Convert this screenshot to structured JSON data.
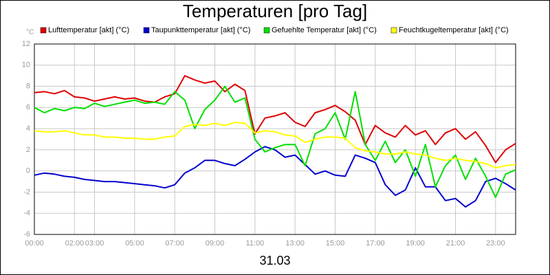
{
  "chart_data": {
    "type": "line",
    "title": "Temperaturen [pro Tag]",
    "x_label": "31.03",
    "y_label": "°C",
    "x": [
      0,
      0.5,
      1,
      1.5,
      2,
      2.5,
      3,
      3.5,
      4,
      4.5,
      5,
      5.5,
      6,
      6.5,
      7,
      7.5,
      8,
      8.5,
      9,
      9.5,
      10,
      10.5,
      11,
      11.5,
      12,
      12.5,
      13,
      13.5,
      14,
      14.5,
      15,
      15.5,
      16,
      16.5,
      17,
      17.5,
      18,
      18.5,
      19,
      19.5,
      20,
      20.5,
      21,
      21.5,
      22,
      22.5,
      23,
      23.5,
      24
    ],
    "xlim": [
      0,
      24
    ],
    "xticks": [
      {
        "value": 0,
        "label": "00:00"
      },
      {
        "value": 2,
        "label": "02:00"
      },
      {
        "value": 3,
        "label": "03:00"
      },
      {
        "value": 5,
        "label": "05:00"
      },
      {
        "value": 7,
        "label": "07:00"
      },
      {
        "value": 9,
        "label": "09:00"
      },
      {
        "value": 11,
        "label": "11:00"
      },
      {
        "value": 13,
        "label": "13:00"
      },
      {
        "value": 15,
        "label": "15:00"
      },
      {
        "value": 17,
        "label": "17:00"
      },
      {
        "value": 19,
        "label": "19:00"
      },
      {
        "value": 21,
        "label": "21:00"
      },
      {
        "value": 23,
        "label": "23:00"
      }
    ],
    "ylim": [
      -6,
      12
    ],
    "yticks": [
      -6,
      -4,
      -2,
      0,
      2,
      4,
      6,
      8,
      10,
      12
    ],
    "grid": true,
    "legend": "top",
    "series": [
      {
        "name": "Lufttemperatur [akt] (°C)",
        "color": "#e00000",
        "values": [
          7.4,
          7.5,
          7.3,
          7.6,
          7.0,
          6.9,
          6.6,
          6.8,
          7.0,
          6.8,
          6.9,
          6.6,
          6.5,
          7.0,
          7.3,
          9.0,
          8.6,
          8.3,
          8.5,
          7.5,
          8.2,
          7.6,
          3.5,
          5.0,
          5.2,
          5.5,
          4.6,
          4.2,
          5.5,
          5.8,
          6.2,
          5.6,
          4.8,
          2.5,
          4.3,
          3.6,
          3.2,
          4.3,
          3.4,
          3.8,
          2.5,
          3.6,
          4.0,
          3.0,
          3.7,
          2.4,
          0.8,
          2.0,
          2.6
        ]
      },
      {
        "name": "Taupunkttemperatur [akt] (°C)",
        "color": "#0000d0",
        "values": [
          -0.4,
          -0.2,
          -0.3,
          -0.5,
          -0.6,
          -0.8,
          -0.9,
          -1.0,
          -1.0,
          -1.1,
          -1.2,
          -1.3,
          -1.4,
          -1.6,
          -1.3,
          -0.2,
          0.3,
          1.0,
          1.0,
          0.7,
          0.5,
          1.1,
          1.8,
          2.3,
          2.0,
          1.3,
          1.5,
          0.6,
          -0.3,
          0.0,
          -0.4,
          -0.5,
          1.5,
          1.2,
          0.8,
          -1.3,
          -2.3,
          -1.8,
          0.3,
          -1.5,
          -1.5,
          -2.8,
          -2.6,
          -3.4,
          -2.8,
          -1.0,
          -0.7,
          -1.2,
          -1.8
        ]
      },
      {
        "name": "Gefuehlte Temperatur [akt] (°C)",
        "color": "#00e000",
        "values": [
          6.0,
          5.5,
          5.9,
          5.7,
          6.0,
          5.9,
          6.4,
          6.1,
          6.3,
          6.5,
          6.7,
          6.4,
          6.5,
          6.3,
          7.5,
          6.7,
          4.0,
          5.8,
          6.7,
          8.0,
          6.5,
          6.9,
          3.0,
          1.8,
          2.2,
          2.5,
          2.5,
          0.5,
          3.5,
          4.0,
          5.5,
          3.0,
          7.5,
          2.5,
          1.0,
          2.8,
          0.8,
          2.0,
          -0.5,
          2.5,
          -1.5,
          0.5,
          1.5,
          -0.8,
          1.2,
          -0.5,
          -2.5,
          -0.3,
          0.1
        ]
      },
      {
        "name": "Feuchtkugeltemperatur [akt] (°C)",
        "color": "#ffff00",
        "values": [
          3.8,
          3.7,
          3.7,
          3.8,
          3.6,
          3.4,
          3.4,
          3.2,
          3.2,
          3.1,
          3.1,
          3.0,
          3.0,
          3.2,
          3.3,
          4.2,
          4.4,
          4.3,
          4.5,
          4.3,
          4.6,
          4.5,
          3.6,
          3.8,
          3.7,
          3.4,
          3.3,
          2.7,
          3.0,
          3.2,
          3.2,
          3.1,
          2.2,
          1.9,
          1.8,
          1.6,
          1.6,
          1.8,
          1.6,
          1.5,
          1.2,
          1.0,
          1.2,
          1.0,
          0.9,
          0.7,
          0.3,
          0.5,
          0.6
        ]
      }
    ]
  }
}
